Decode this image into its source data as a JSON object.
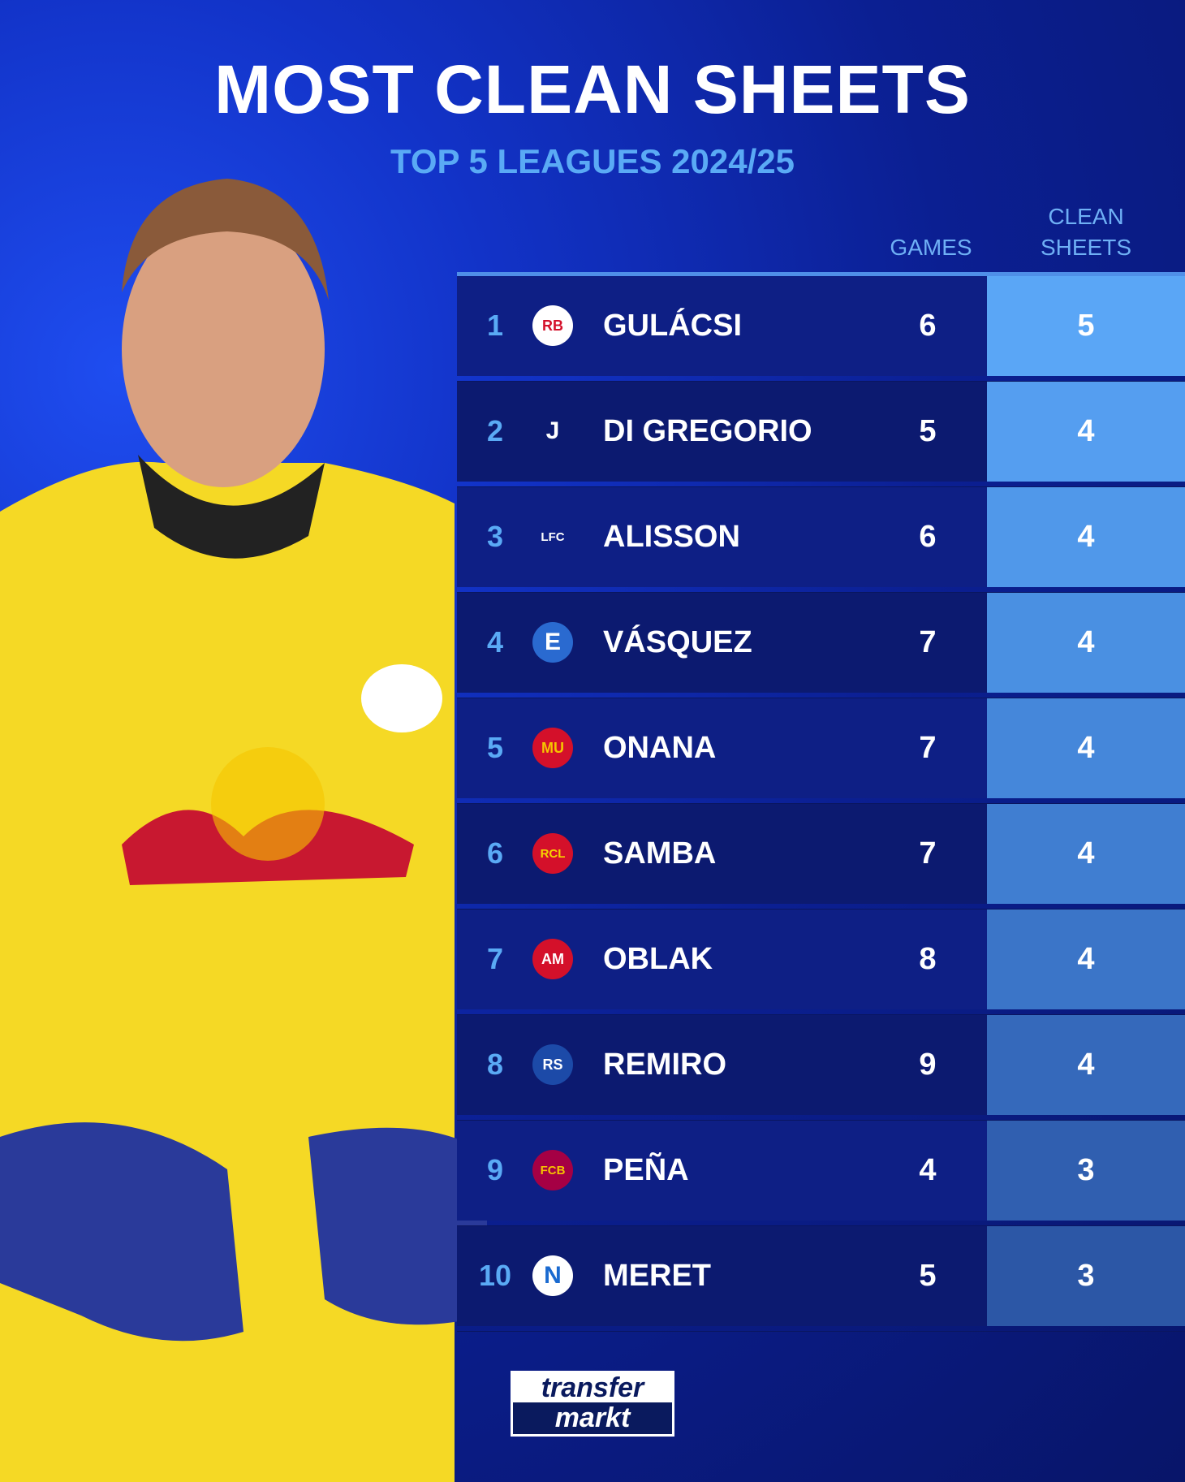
{
  "title": "MOST CLEAN SHEETS",
  "subtitle": "TOP 5 LEAGUES 2024/25",
  "columns": {
    "games": "GAMES",
    "clean_sheets_1": "CLEAN",
    "clean_sheets_2": "SHEETS"
  },
  "rows": [
    {
      "rank": "1",
      "name": "GULÁCSI",
      "games": "6",
      "clean_sheets": "5",
      "club_icon": "rb-leipzig-crest",
      "logo_bg": "#ffffff",
      "logo_fg": "#d4102a",
      "glyph": "RB"
    },
    {
      "rank": "2",
      "name": "DI GREGORIO",
      "games": "5",
      "clean_sheets": "4",
      "club_icon": "juventus-crest",
      "logo_bg": "transparent",
      "logo_fg": "#ffffff",
      "glyph": "J"
    },
    {
      "rank": "3",
      "name": "ALISSON",
      "games": "6",
      "clean_sheets": "4",
      "club_icon": "liverpool-crest",
      "logo_bg": "transparent",
      "logo_fg": "#ffffff",
      "glyph": "LFC"
    },
    {
      "rank": "4",
      "name": "VÁSQUEZ",
      "games": "7",
      "clean_sheets": "4",
      "club_icon": "empoli-crest",
      "logo_bg": "#2a6ad0",
      "logo_fg": "#ffffff",
      "glyph": "E"
    },
    {
      "rank": "5",
      "name": "ONANA",
      "games": "7",
      "clean_sheets": "4",
      "club_icon": "manchester-united-crest",
      "logo_bg": "#d4102a",
      "logo_fg": "#f5c400",
      "glyph": "MU"
    },
    {
      "rank": "6",
      "name": "SAMBA",
      "games": "7",
      "clean_sheets": "4",
      "club_icon": "rc-lens-crest",
      "logo_bg": "#d4102a",
      "logo_fg": "#f5d400",
      "glyph": "RCL"
    },
    {
      "rank": "7",
      "name": "OBLAK",
      "games": "8",
      "clean_sheets": "4",
      "club_icon": "atletico-madrid-crest",
      "logo_bg": "#d4102a",
      "logo_fg": "#ffffff",
      "glyph": "AM"
    },
    {
      "rank": "8",
      "name": "REMIRO",
      "games": "9",
      "clean_sheets": "4",
      "club_icon": "real-sociedad-crest",
      "logo_bg": "#1c4aa8",
      "logo_fg": "#ffffff",
      "glyph": "RS"
    },
    {
      "rank": "9",
      "name": "PEÑA",
      "games": "4",
      "clean_sheets": "3",
      "club_icon": "barcelona-crest",
      "logo_bg": "#a50044",
      "logo_fg": "#f5c400",
      "glyph": "FCB"
    },
    {
      "rank": "10",
      "name": "MERET",
      "games": "5",
      "clean_sheets": "3",
      "club_icon": "napoli-crest",
      "logo_bg": "#ffffff",
      "logo_fg": "#1a6ad0",
      "glyph": "N"
    }
  ],
  "cs_colors": [
    "#5aa6f6",
    "#559ef0",
    "#5098ea",
    "#4a90e2",
    "#4587da",
    "#407ed1",
    "#3b75c8",
    "#3569bb",
    "#305fb0",
    "#2c57a6"
  ],
  "row_colors": [
    "#0e1f85",
    "#0c1a70",
    "#0e1f85",
    "#0c1a70",
    "#0e1f85",
    "#0c1a70",
    "#0e1f85",
    "#0c1a70",
    "#0e1f85",
    "#0c1a70"
  ],
  "logo": {
    "line1": "transfer",
    "line2": "markt"
  }
}
